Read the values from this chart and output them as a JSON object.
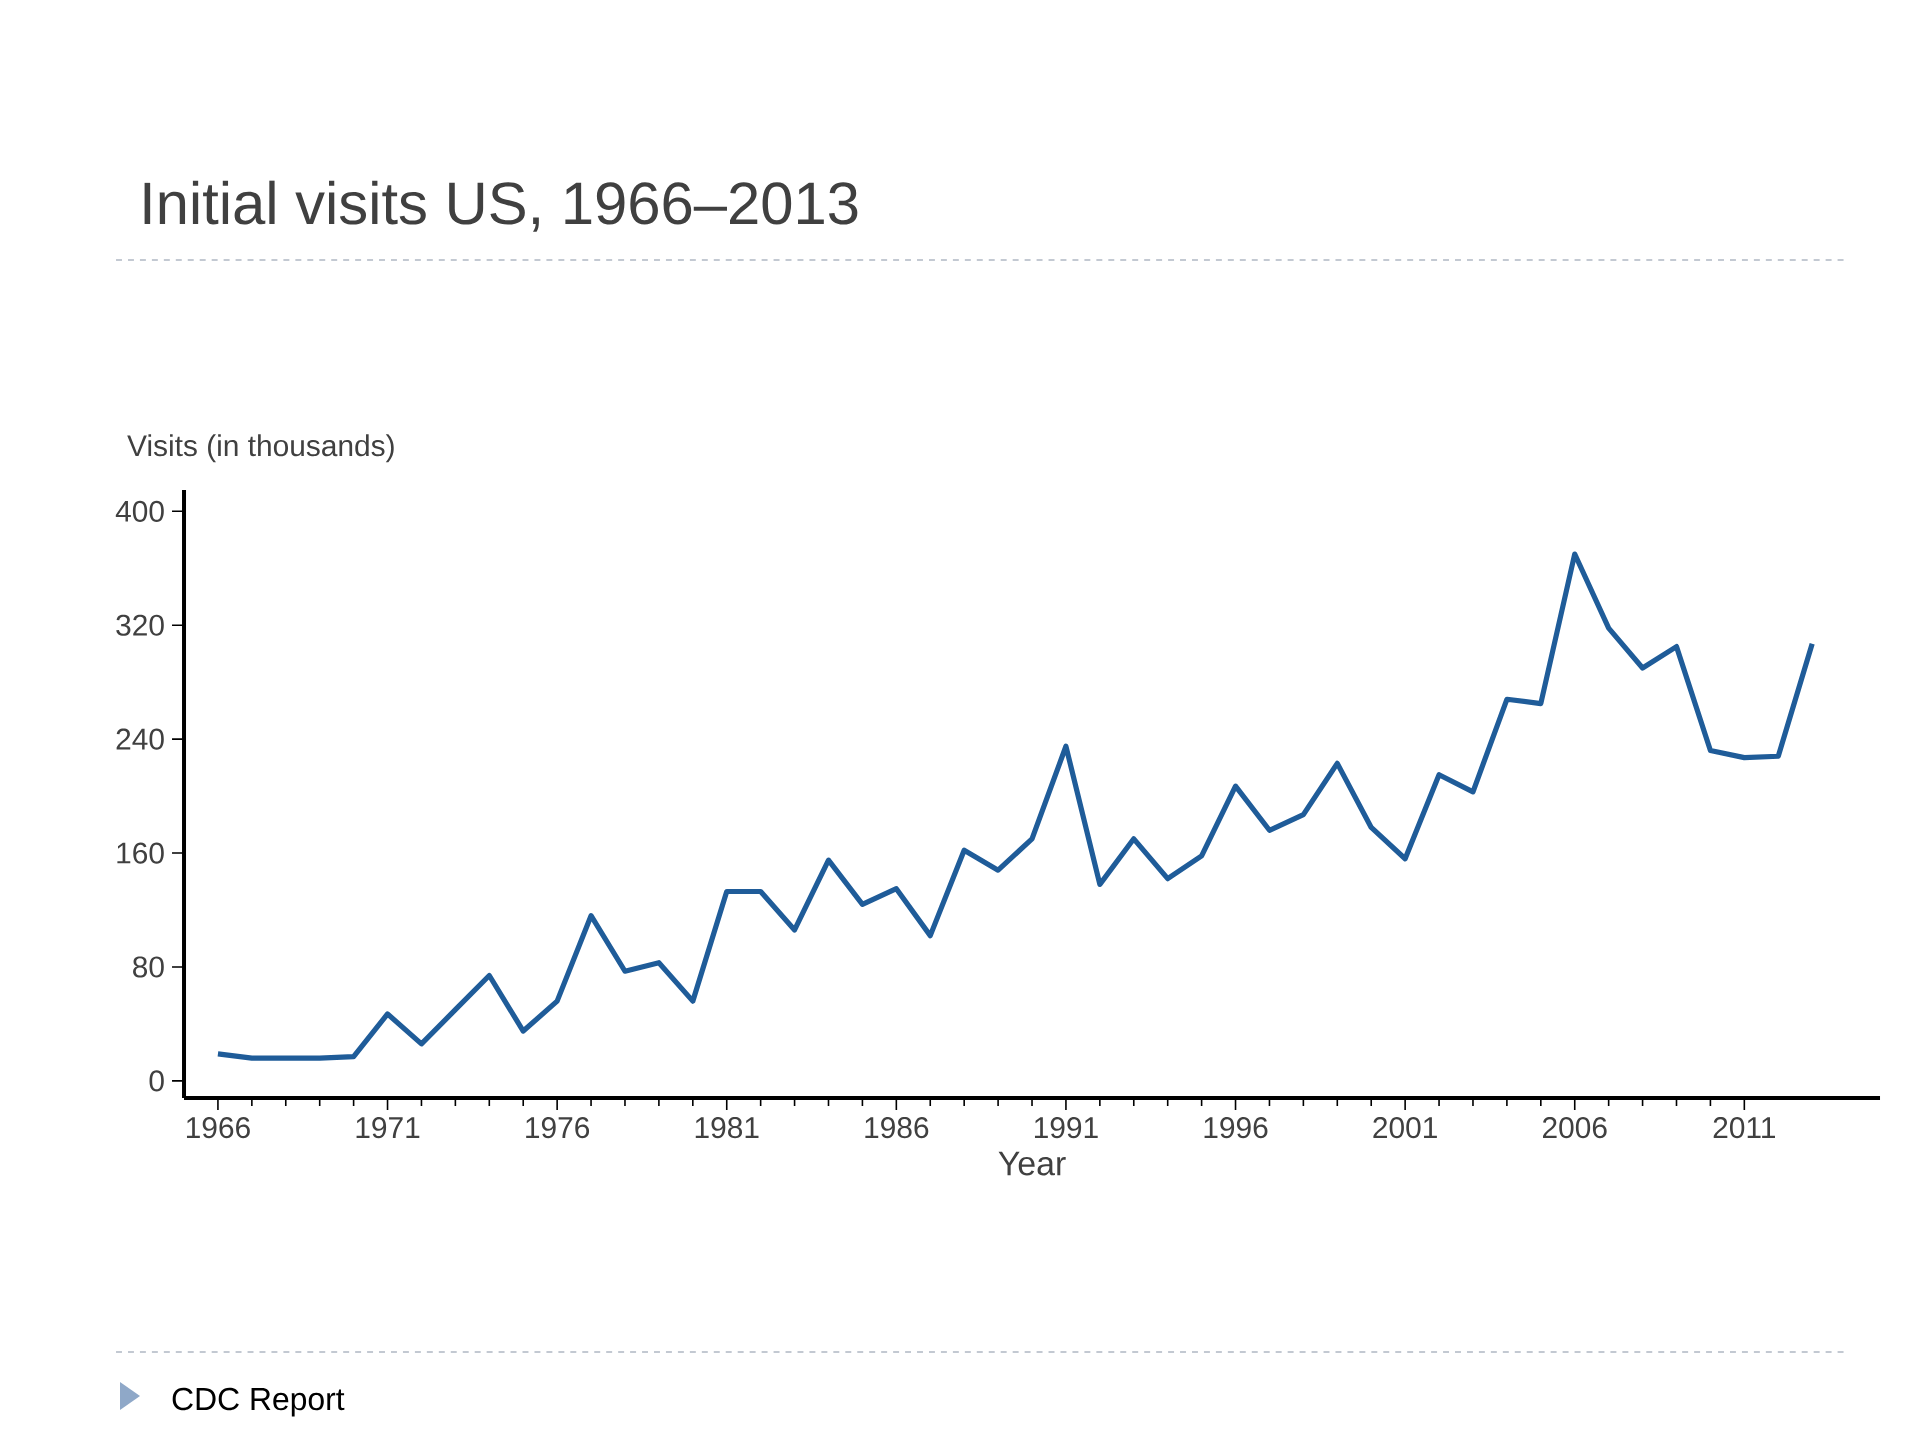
{
  "chart_data": {
    "type": "line",
    "title": "Initial visits US, 1966–2013",
    "ylabel": "Visits (in thousands)",
    "xlabel": "Year",
    "x": [
      1966,
      1967,
      1968,
      1969,
      1970,
      1971,
      1972,
      1973,
      1974,
      1975,
      1976,
      1977,
      1978,
      1979,
      1980,
      1981,
      1982,
      1983,
      1984,
      1985,
      1986,
      1987,
      1988,
      1989,
      1990,
      1991,
      1992,
      1993,
      1994,
      1995,
      1996,
      1997,
      1998,
      1999,
      2000,
      2001,
      2002,
      2003,
      2004,
      2005,
      2006,
      2007,
      2008,
      2009,
      2010,
      2011,
      2012,
      2013
    ],
    "series": [
      {
        "color": "#1f5c99",
        "values": [
          19,
          16,
          16,
          16,
          17,
          47,
          26,
          50,
          74,
          35,
          56,
          116,
          77,
          83,
          56,
          133,
          133,
          106,
          155,
          124,
          135,
          102,
          162,
          148,
          170,
          235,
          138,
          170,
          142,
          158,
          207,
          176,
          187,
          223,
          178,
          156,
          215,
          203,
          268,
          265,
          370,
          318,
          290,
          305,
          232,
          227,
          228,
          307
        ]
      }
    ],
    "xlim": [
      1965,
      2015
    ],
    "ylim": [
      -12,
      415
    ],
    "xticks": [
      1966,
      1971,
      1976,
      1981,
      1986,
      1991,
      1996,
      2001,
      2006,
      2011
    ],
    "yticks": [
      0,
      80,
      160,
      240,
      320,
      400
    ],
    "line_style": "solid",
    "annotations": [
      "CDC Report"
    ]
  }
}
